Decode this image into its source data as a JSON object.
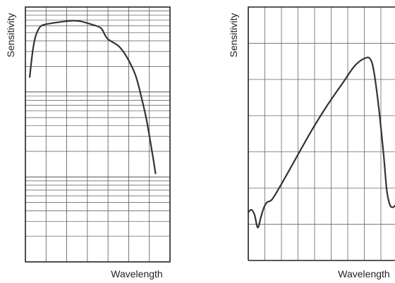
{
  "chart_data": [
    {
      "type": "line",
      "title": "",
      "xlabel": "Wavelength",
      "ylabel": "Sensitivity",
      "y_scale": "log",
      "grid": true,
      "axis_ticks": false,
      "ylim": [
        0.001,
        1
      ],
      "xlim": [
        0,
        1
      ],
      "series": [
        {
          "x": [
            0.03,
            0.05,
            0.07,
            0.1,
            0.13,
            0.17,
            0.22,
            0.28,
            0.33,
            0.38,
            0.45,
            0.52,
            0.55,
            0.57,
            0.61,
            0.65,
            0.7,
            0.76,
            0.8,
            0.84,
            0.88,
            0.9
          ],
          "y": [
            0.15,
            0.3,
            0.45,
            0.58,
            0.62,
            0.64,
            0.66,
            0.68,
            0.69,
            0.68,
            0.63,
            0.57,
            0.47,
            0.42,
            0.38,
            0.34,
            0.26,
            0.16,
            0.09,
            0.045,
            0.018,
            0.011
          ]
        }
      ]
    },
    {
      "type": "line",
      "title": "",
      "xlabel": "Wavelength",
      "ylabel": "Sensitivity",
      "y_scale": "linear",
      "grid": true,
      "axis_ticks": false,
      "ylim": [
        0,
        1
      ],
      "xlim": [
        0,
        1
      ],
      "series": [
        {
          "x": [
            0.0,
            0.02,
            0.04,
            0.06,
            0.08,
            0.1,
            0.12,
            0.15,
            0.2,
            0.3,
            0.4,
            0.5,
            0.6,
            0.68,
            0.75,
            0.78,
            0.8,
            0.83,
            0.86,
            0.88,
            0.9,
            0.92,
            0.94,
            0.96
          ],
          "y": [
            0.19,
            0.2,
            0.18,
            0.13,
            0.17,
            0.21,
            0.23,
            0.24,
            0.29,
            0.4,
            0.51,
            0.61,
            0.7,
            0.77,
            0.8,
            0.79,
            0.74,
            0.6,
            0.42,
            0.28,
            0.22,
            0.21,
            0.22,
            0.22
          ]
        }
      ]
    }
  ]
}
